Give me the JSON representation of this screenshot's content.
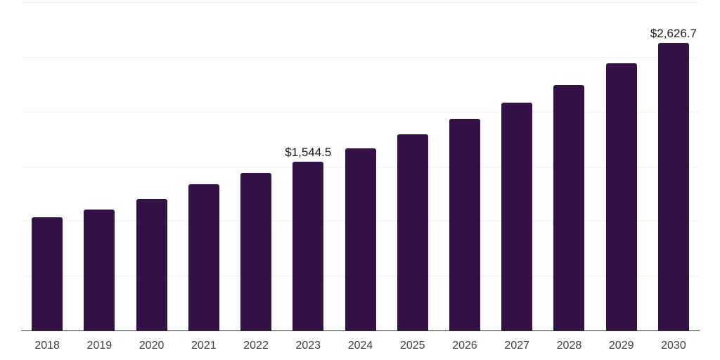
{
  "chart_data": {
    "type": "bar",
    "title": "",
    "xlabel": "",
    "ylabel": "",
    "categories": [
      "2018",
      "2019",
      "2020",
      "2021",
      "2022",
      "2023",
      "2024",
      "2025",
      "2026",
      "2027",
      "2028",
      "2029",
      "2030"
    ],
    "values": [
      1035,
      1105,
      1200,
      1335,
      1440,
      1544.5,
      1665,
      1790,
      1935,
      2080,
      2245,
      2440,
      2626.7
    ],
    "value_labels": {
      "2023": "$1,544.5",
      "2030": "$2,626.7"
    },
    "currency_prefix": "$",
    "ylim": [
      0,
      3000
    ],
    "gridline_step": 500,
    "grid": "horizontal",
    "legend_position": "none"
  },
  "colors": {
    "background": "#ffffff",
    "bar": "#341149",
    "axis": "#303030",
    "gridline": "#efefef",
    "value_label": "#1a1a1a",
    "tick_label": "#404040"
  }
}
